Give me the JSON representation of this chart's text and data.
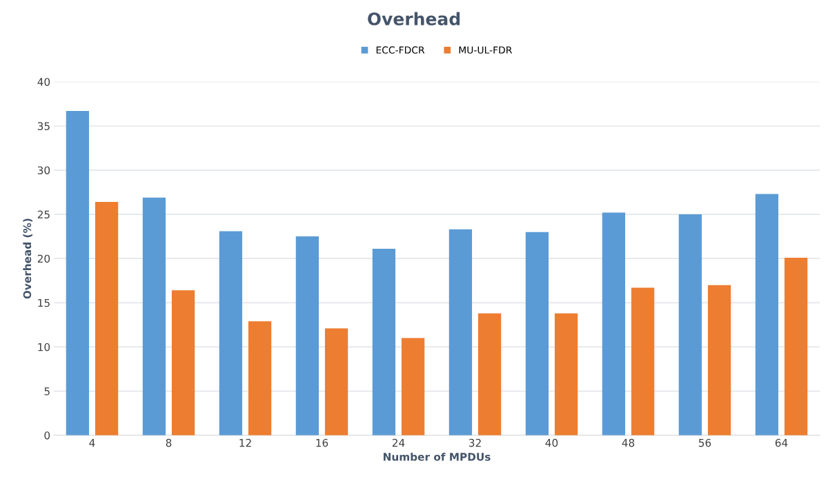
{
  "chart_data": {
    "type": "bar",
    "title": "Overhead",
    "xlabel": "Number of MPDUs",
    "ylabel": "Overhead (%)",
    "categories": [
      "4",
      "8",
      "12",
      "16",
      "24",
      "32",
      "40",
      "48",
      "56",
      "64"
    ],
    "series": [
      {
        "name": "ECC-FDCR",
        "color": "#5b9bd5",
        "values": [
          36.7,
          26.9,
          23.1,
          22.5,
          21.1,
          23.3,
          23.0,
          25.2,
          25.0,
          27.3
        ]
      },
      {
        "name": "MU-UL-FDR",
        "color": "#ed7d31",
        "values": [
          26.4,
          16.4,
          12.9,
          12.1,
          11.0,
          13.8,
          13.8,
          16.7,
          17.0,
          20.1
        ]
      }
    ],
    "ylim": [
      0,
      40
    ],
    "yticks": [
      0,
      5,
      10,
      15,
      20,
      25,
      30,
      35,
      40
    ],
    "grid": "y",
    "legend": "top"
  }
}
